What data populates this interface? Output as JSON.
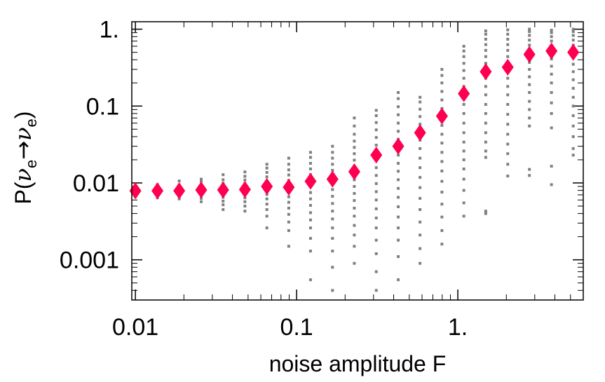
{
  "chart_data": {
    "type": "scatter",
    "title": "",
    "xlabel": "noise amplitude F",
    "ylabel": "P(νe→νe)",
    "ylabel_parts": {
      "prefix": "P(",
      "nu1": "ν",
      "sub1": "e",
      "arrow": "→",
      "nu2": "ν",
      "sub2": "e",
      "suffix": ")"
    },
    "x_scale": "log",
    "y_scale": "log",
    "xlim": [
      0.0095,
      6.0
    ],
    "ylim": [
      0.0003,
      1.25
    ],
    "x_ticks": [
      {
        "value": 0.01,
        "label": "0.01"
      },
      {
        "value": 0.1,
        "label": "0.1"
      },
      {
        "value": 1,
        "label": "1."
      }
    ],
    "y_ticks": [
      {
        "value": 0.001,
        "label": "0.001"
      },
      {
        "value": 0.01,
        "label": "0.01"
      },
      {
        "value": 0.1,
        "label": "0.1"
      },
      {
        "value": 1,
        "label": "1."
      }
    ],
    "grid": false,
    "legend": "none",
    "series": [
      {
        "marker": "diamond",
        "color": "#ff0050",
        "x": [
          0.01,
          0.0137,
          0.0187,
          0.0256,
          0.035,
          0.0478,
          0.0654,
          0.0894,
          0.122,
          0.167,
          0.228,
          0.312,
          0.427,
          0.583,
          0.797,
          1.09,
          1.49,
          2.04,
          2.78,
          3.81,
          5.2
        ],
        "y": [
          0.0079,
          0.0079,
          0.0079,
          0.0081,
          0.0081,
          0.0082,
          0.009,
          0.0088,
          0.0105,
          0.0112,
          0.014,
          0.023,
          0.03,
          0.045,
          0.074,
          0.145,
          0.28,
          0.32,
          0.47,
          0.52,
          0.5
        ]
      },
      {
        "marker": "square",
        "color": "#808080",
        "point_groups": [
          {
            "x": 0.01,
            "y": [
              0.0066,
              0.0071,
              0.0075,
              0.0079,
              0.0083,
              0.0087,
              0.0092
            ]
          },
          {
            "x": 0.0137,
            "y": [
              0.0064,
              0.0069,
              0.0074,
              0.0079,
              0.0084,
              0.0089,
              0.0095
            ]
          },
          {
            "x": 0.0187,
            "y": [
              0.0062,
              0.0068,
              0.0074,
              0.008,
              0.0087,
              0.0094,
              0.0106
            ]
          },
          {
            "x": 0.0256,
            "y": [
              0.0057,
              0.0063,
              0.007,
              0.0078,
              0.0086,
              0.0095,
              0.0105,
              0.0112
            ]
          },
          {
            "x": 0.035,
            "y": [
              0.0045,
              0.0052,
              0.0058,
              0.0065,
              0.0072,
              0.008,
              0.0089,
              0.0099,
              0.011,
              0.0128
            ]
          },
          {
            "x": 0.0478,
            "y": [
              0.0043,
              0.005,
              0.0057,
              0.0064,
              0.0071,
              0.0079,
              0.0088,
              0.0098,
              0.0109,
              0.0122,
              0.0139
            ]
          },
          {
            "x": 0.0654,
            "y": [
              0.0026,
              0.0037,
              0.0045,
              0.0053,
              0.0062,
              0.0071,
              0.0082,
              0.0093,
              0.0106,
              0.012,
              0.0137,
              0.0156,
              0.0175
            ]
          },
          {
            "x": 0.0894,
            "y": [
              0.0015,
              0.0024,
              0.0031,
              0.0039,
              0.0047,
              0.0056,
              0.0066,
              0.0078,
              0.0092,
              0.0108,
              0.0127,
              0.0148,
              0.0175,
              0.021
            ]
          },
          {
            "x": 0.122,
            "y": [
              0.00055,
              0.0013,
              0.0019,
              0.0026,
              0.0033,
              0.0041,
              0.0051,
              0.0062,
              0.0075,
              0.009,
              0.0108,
              0.0128,
              0.0152,
              0.018,
              0.0215,
              0.025
            ]
          },
          {
            "x": 0.167,
            "y": [
              0.0004,
              0.0008,
              0.0013,
              0.0019,
              0.0026,
              0.0034,
              0.0043,
              0.0054,
              0.0067,
              0.0082,
              0.01,
              0.0121,
              0.0146,
              0.0175,
              0.021,
              0.025,
              0.03
            ]
          },
          {
            "x": 0.228,
            "y": [
              0.0009,
              0.0015,
              0.0021,
              0.0028,
              0.0037,
              0.0047,
              0.0059,
              0.0073,
              0.009,
              0.011,
              0.0134,
              0.0163,
              0.0198,
              0.024,
              0.029,
              0.035,
              0.043,
              0.055,
              0.07
            ]
          },
          {
            "x": 0.312,
            "y": [
              0.0004,
              0.0007,
              0.0012,
              0.0018,
              0.0026,
              0.0035,
              0.0046,
              0.006,
              0.0077,
              0.0098,
              0.0125,
              0.0158,
              0.02,
              0.025,
              0.031,
              0.039,
              0.049,
              0.061,
              0.075,
              0.088
            ]
          },
          {
            "x": 0.427,
            "y": [
              0.00055,
              0.0011,
              0.0018,
              0.0026,
              0.0036,
              0.0049,
              0.0065,
              0.0085,
              0.011,
              0.0142,
              0.018,
              0.023,
              0.029,
              0.037,
              0.047,
              0.06,
              0.077,
              0.098,
              0.125,
              0.15
            ]
          },
          {
            "x": 0.583,
            "y": [
              0.0009,
              0.0014,
              0.0021,
              0.0031,
              0.0045,
              0.0063,
              0.0087,
              0.0118,
              0.0158,
              0.021,
              0.028,
              0.036,
              0.046,
              0.058,
              0.073,
              0.091,
              0.113,
              0.13
            ]
          },
          {
            "x": 0.797,
            "y": [
              0.0016,
              0.0024,
              0.0036,
              0.0053,
              0.0076,
              0.0105,
              0.0143,
              0.019,
              0.025,
              0.033,
              0.043,
              0.056,
              0.072,
              0.093,
              0.12,
              0.155,
              0.2,
              0.25,
              0.3
            ]
          },
          {
            "x": 1.09,
            "y": [
              0.0037,
              0.0055,
              0.008,
              0.0112,
              0.0152,
              0.02,
              0.026,
              0.034,
              0.045,
              0.06,
              0.08,
              0.105,
              0.14,
              0.18,
              0.23,
              0.29,
              0.36,
              0.44,
              0.52,
              0.6
            ]
          },
          {
            "x": 1.49,
            "y": [
              0.004,
              0.0043,
              0.0215,
              0.026,
              0.034,
              0.045,
              0.06,
              0.08,
              0.105,
              0.14,
              0.18,
              0.23,
              0.29,
              0.36,
              0.44,
              0.53,
              0.63,
              0.74,
              0.86,
              0.95
            ]
          },
          {
            "x": 2.04,
            "y": [
              0.0123,
              0.0175,
              0.024,
              0.032,
              0.043,
              0.058,
              0.078,
              0.105,
              0.14,
              0.18,
              0.23,
              0.29,
              0.36,
              0.44,
              0.53,
              0.63,
              0.74,
              0.86,
              0.98
            ]
          },
          {
            "x": 2.78,
            "y": [
              0.0125,
              0.015,
              0.055,
              0.07,
              0.09,
              0.115,
              0.15,
              0.19,
              0.24,
              0.3,
              0.37,
              0.45,
              0.53,
              0.62,
              0.72,
              0.83,
              0.93,
              1.0
            ]
          },
          {
            "x": 3.81,
            "y": [
              0.0095,
              0.0165,
              0.052,
              0.08,
              0.11,
              0.15,
              0.2,
              0.26,
              0.33,
              0.41,
              0.5,
              0.6,
              0.7,
              0.8,
              0.9,
              0.97
            ]
          },
          {
            "x": 5.2,
            "y": [
              0.023,
              0.028,
              0.04,
              0.055,
              0.075,
              0.1,
              0.13,
              0.17,
              0.22,
              0.28,
              0.35,
              0.43,
              0.52,
              0.62,
              0.72,
              0.83,
              0.93,
              1.0
            ]
          }
        ]
      }
    ]
  }
}
